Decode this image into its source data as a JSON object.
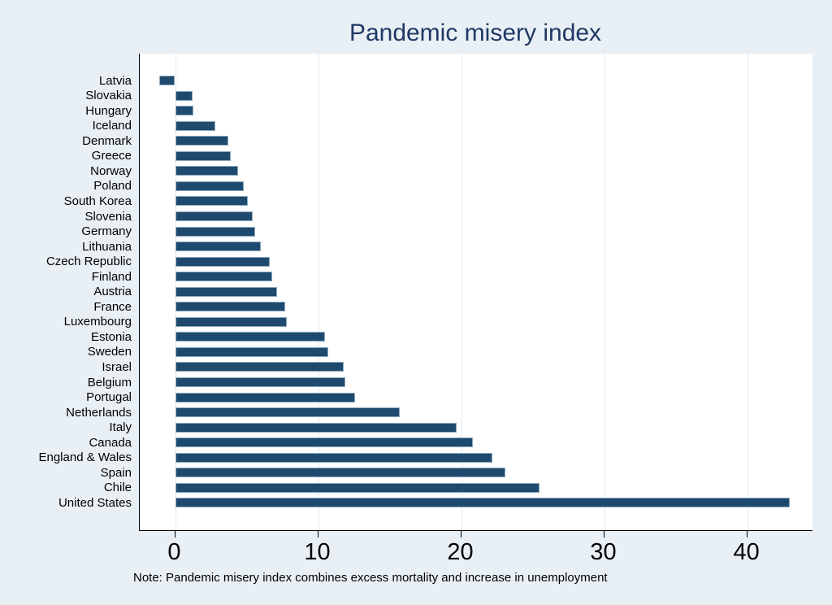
{
  "title": "Pandemic misery index",
  "note": "Note: Pandemic misery index combines excess mortality and increase in unemployment",
  "colors": {
    "background": "#e9f0f5",
    "plot_background": "#ffffff",
    "bar": "#1d4a6e",
    "bar_border": "#8fa9bd",
    "gridline": "#dfe9f1",
    "axis": "#000000",
    "title": "#1f3864",
    "label_text": "#000000"
  },
  "chart_data": {
    "type": "bar",
    "orientation": "horizontal",
    "title": "Pandemic misery index",
    "note": "Note: Pandemic misery index combines excess mortality and increase in unemployment",
    "categories": [
      "Latvia",
      "Slovakia",
      "Hungary",
      "Iceland",
      "Denmark",
      "Greece",
      "Norway",
      "Poland",
      "South Korea",
      "Slovenia",
      "Germany",
      "Lithuania",
      "Czech Republic",
      "Finland",
      "Austria",
      "France",
      "Luxembourg",
      "Estonia",
      "Sweden",
      "Israel",
      "Belgium",
      "Portugal",
      "Netherlands",
      "Italy",
      "Canada",
      "England & Wales",
      "Spain",
      "Chile",
      "United States"
    ],
    "values": [
      -1.1,
      1.2,
      1.3,
      2.8,
      3.7,
      3.9,
      4.4,
      4.8,
      5.1,
      5.4,
      5.6,
      6.0,
      6.6,
      6.8,
      7.1,
      7.7,
      7.8,
      10.5,
      10.7,
      11.8,
      11.9,
      12.6,
      15.7,
      19.7,
      20.8,
      22.2,
      23.1,
      25.5,
      43.0
    ],
    "xticks": [
      0,
      10,
      20,
      30,
      40
    ],
    "xlim": [
      -2.47,
      44.57
    ],
    "xlabel": "",
    "ylabel": "",
    "grid": true,
    "legend": false
  }
}
